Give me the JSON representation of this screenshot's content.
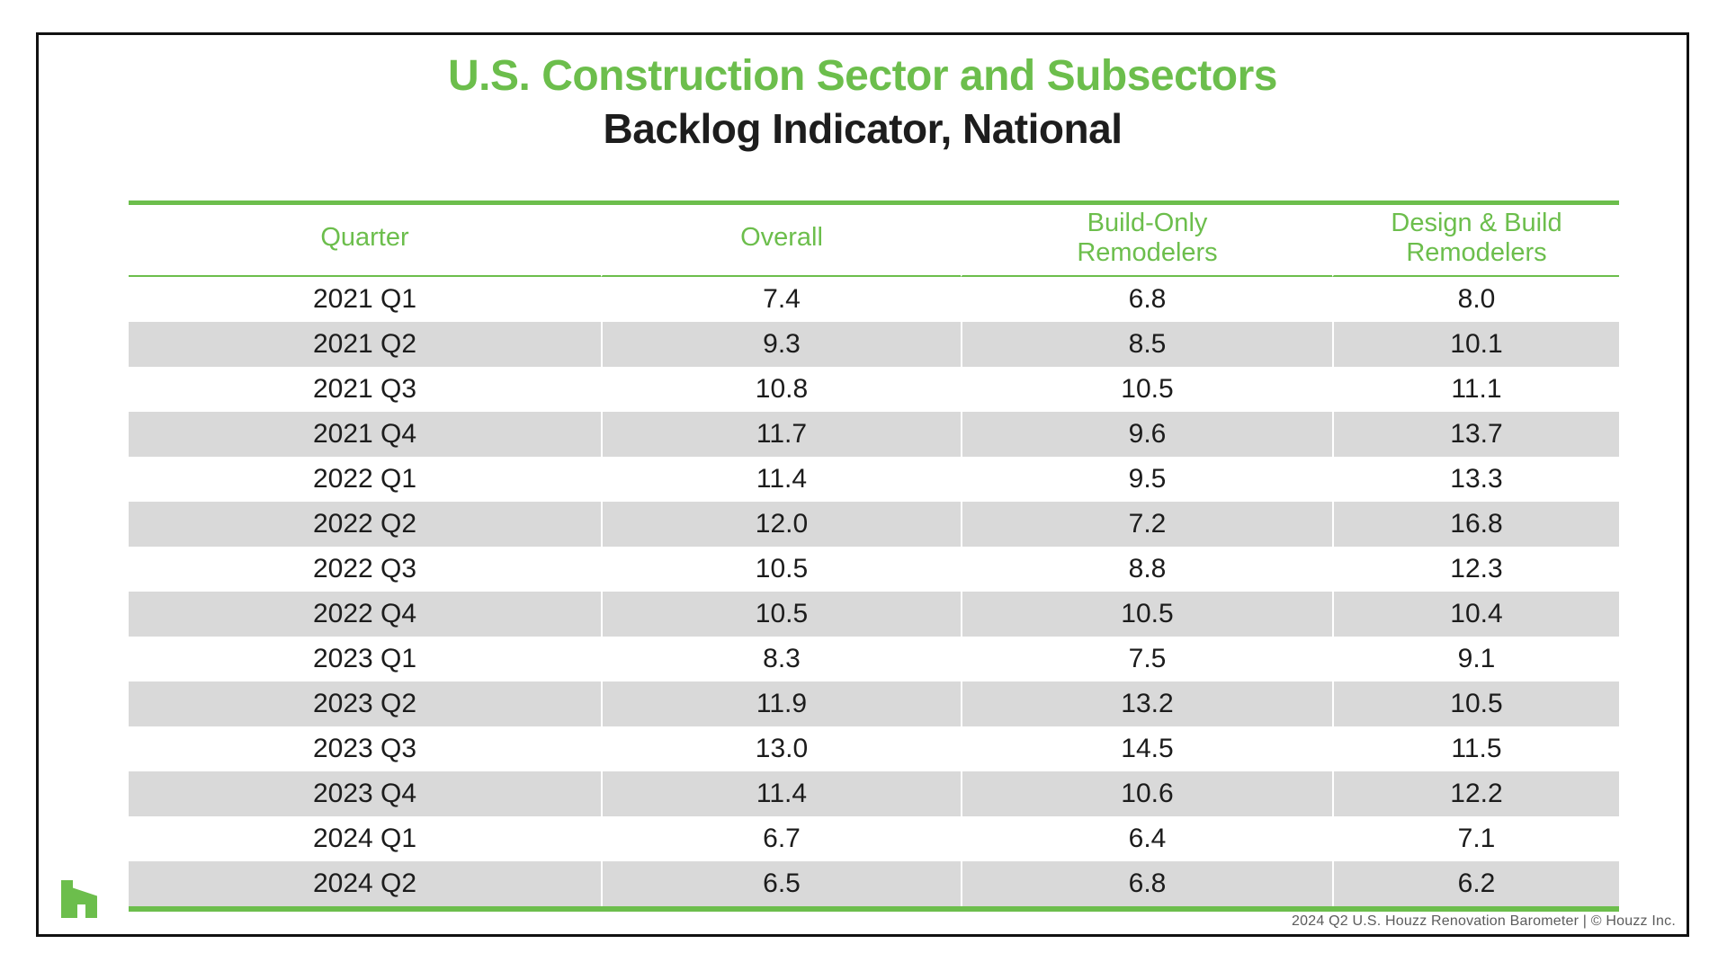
{
  "title": "U.S. Construction Sector and Subsectors",
  "subtitle": "Backlog Indicator, National",
  "table": {
    "columns": [
      "Quarter",
      "Overall",
      "Build-Only\nRemodelers",
      "Design & Build\nRemodelers"
    ]
  },
  "chart_data": {
    "type": "table",
    "title": "U.S. Construction Sector and Subsectors",
    "subtitle": "Backlog Indicator, National",
    "categories": [
      "2021 Q1",
      "2021 Q2",
      "2021 Q3",
      "2021 Q4",
      "2022 Q1",
      "2022 Q2",
      "2022 Q3",
      "2022 Q4",
      "2023 Q1",
      "2023 Q2",
      "2023 Q3",
      "2023 Q4",
      "2024 Q1",
      "2024 Q2"
    ],
    "series": [
      {
        "name": "Overall",
        "values": [
          7.4,
          9.3,
          10.8,
          11.7,
          11.4,
          12.0,
          10.5,
          10.5,
          8.3,
          11.9,
          13.0,
          11.4,
          6.7,
          6.5
        ]
      },
      {
        "name": "Build-Only Remodelers",
        "values": [
          6.8,
          8.5,
          10.5,
          9.6,
          9.5,
          7.2,
          8.8,
          10.5,
          7.5,
          13.2,
          14.5,
          10.6,
          6.4,
          6.8
        ]
      },
      {
        "name": "Design & Build Remodelers",
        "values": [
          8.0,
          10.1,
          11.1,
          13.7,
          13.3,
          16.8,
          12.3,
          10.4,
          9.1,
          10.5,
          11.5,
          12.2,
          7.1,
          6.2
        ]
      }
    ],
    "row_striping": "alternating white / light gray starting with white",
    "decimals": 1
  },
  "footer": "2024 Q2 U.S. Houzz Renovation Barometer  |  © Houzz Inc.",
  "logo_name": "houzz-logo",
  "colors": {
    "accent_green": "#6CBE4C",
    "row_stripe_gray": "#D9D9D9",
    "frame_black": "#111111",
    "text_black": "#1C1C1C",
    "footer_gray": "#5C5C5C"
  }
}
